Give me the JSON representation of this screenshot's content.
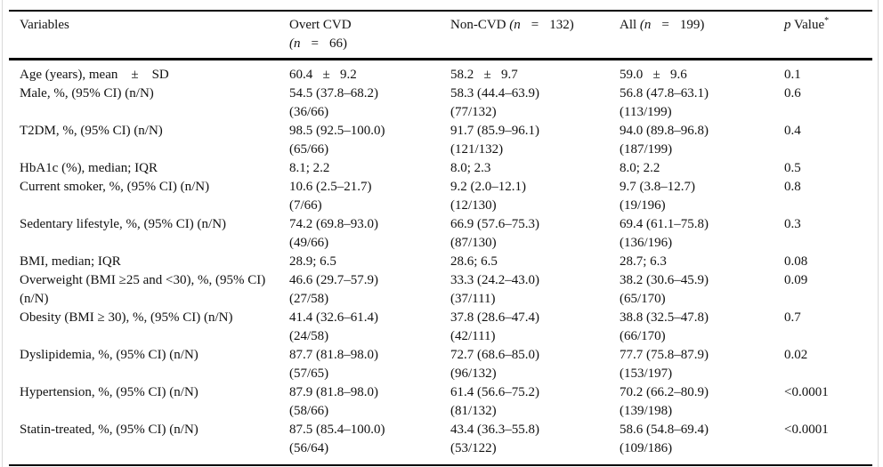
{
  "table": {
    "header": {
      "variables": "Variables",
      "overt": {
        "name": "Overt CVD",
        "n_open": "(n",
        "eq": "=",
        "n_close": "66)"
      },
      "non_cvd": {
        "name": "Non-CVD",
        "n_open": "(n",
        "eq": "=",
        "n_close": "132)"
      },
      "all": {
        "name": "All",
        "n_open": "(n",
        "eq": "=",
        "n_close": "199)"
      },
      "p_value": {
        "p": "p",
        "label": "Value",
        "asterisk": "*"
      }
    },
    "rows": [
      {
        "label": "Age (years), mean    ±    SD",
        "overt": "60.4   ±   9.2",
        "non_cvd": "58.2   ±   9.7",
        "all": "59.0   ±   9.6",
        "p": "0.1"
      },
      {
        "label": "Male, %, (95% CI) (n/N)",
        "overt": "54.5 (37.8–68.2)\n(36/66)",
        "non_cvd": "58.3 (44.4–63.9)\n(77/132)",
        "all": "56.8 (47.8–63.1)\n(113/199)",
        "p": "0.6"
      },
      {
        "label": "T2DM, %, (95% CI) (n/N)",
        "overt": "98.5 (92.5–100.0)\n(65/66)",
        "non_cvd": "91.7 (85.9–96.1)\n(121/132)",
        "all": "94.0 (89.8–96.8)\n(187/199)",
        "p": "0.4"
      },
      {
        "label": "HbA1c (%), median; IQR",
        "overt": "8.1; 2.2",
        "non_cvd": "8.0; 2.3",
        "all": "8.0; 2.2",
        "p": "0.5"
      },
      {
        "label": "Current smoker, %, (95% CI) (n/N)",
        "overt": "10.6 (2.5–21.7)\n(7/66)",
        "non_cvd": "9.2 (2.0–12.1)\n(12/130)",
        "all": "9.7 (3.8–12.7)\n(19/196)",
        "p": "0.8"
      },
      {
        "label": "Sedentary lifestyle, %, (95% CI) (n/N)",
        "overt": "74.2 (69.8–93.0)\n(49/66)",
        "non_cvd": "66.9 (57.6–75.3)\n(87/130)",
        "all": "69.4 (61.1–75.8)\n(136/196)",
        "p": "0.3"
      },
      {
        "label": "BMI, median; IQR",
        "overt": "28.9; 6.5",
        "non_cvd": "28.6; 6.5",
        "all": "28.7; 6.3",
        "p": "0.08"
      },
      {
        "label": "Overweight (BMI ≥25 and <30), %, (95% CI) (n/N)",
        "overt": "46.6 (29.7–57.9)\n(27/58)",
        "non_cvd": "33.3 (24.2–43.0)\n(37/111)",
        "all": "38.2 (30.6–45.9)\n(65/170)",
        "p": "0.09"
      },
      {
        "label": "Obesity (BMI ≥ 30), %, (95% CI) (n/N)",
        "overt": "41.4 (32.6–61.4)\n(24/58)",
        "non_cvd": "37.8 (28.6–47.4)\n(42/111)",
        "all": "38.8 (32.5–47.8)\n(66/170)",
        "p": "0.7"
      },
      {
        "label": "Dyslipidemia, %, (95% CI) (n/N)",
        "overt": "87.7 (81.8–98.0)\n(57/65)",
        "non_cvd": "72.7 (68.6–85.0)\n(96/132)",
        "all": "77.7 (75.8–87.9)\n(153/197)",
        "p": "0.02"
      },
      {
        "label": "Hypertension, %, (95% CI) (n/N)",
        "overt": "87.9 (81.8–98.0)\n(58/66)",
        "non_cvd": "61.4 (56.6–75.2)\n(81/132)",
        "all": "70.2 (66.2–80.9)\n(139/198)",
        "p": "<0.0001"
      },
      {
        "label": "Statin-treated, %, (95% CI) (n/N)",
        "overt": "87.5 (85.4–100.0)\n(56/64)",
        "non_cvd": "43.4 (36.3–55.8)\n(53/122)",
        "all": "58.6 (54.8–69.4)\n(109/186)",
        "p": "<0.0001"
      }
    ]
  }
}
